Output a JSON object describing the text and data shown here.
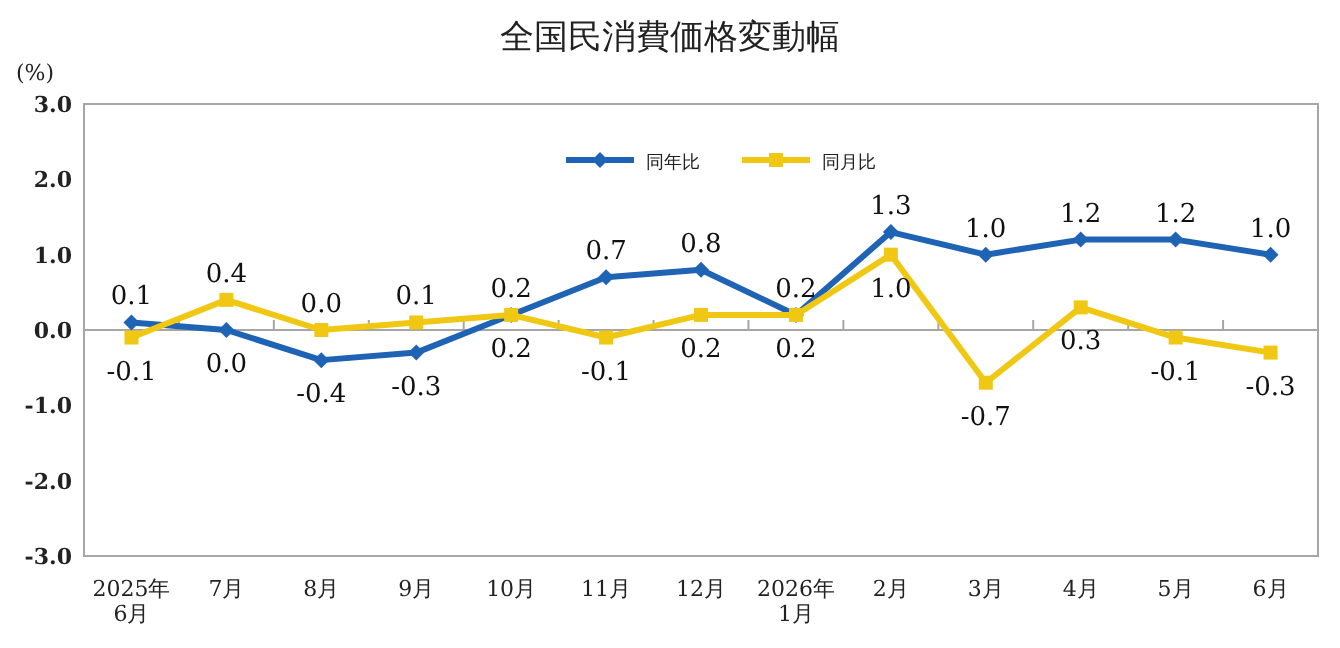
{
  "chart_data": {
    "type": "line",
    "title": "全国民消費価格変動幅",
    "ylabel": "(%)",
    "categories": [
      "2025年\n6月",
      "7月",
      "8月",
      "9月",
      "10月",
      "11月",
      "12月",
      "2026年\n1月",
      "2月",
      "3月",
      "4月",
      "5月",
      "6月"
    ],
    "series": [
      {
        "name": "同年比",
        "color": "#1f63b5",
        "marker": "diamond",
        "values": [
          0.1,
          0.0,
          -0.4,
          -0.3,
          0.2,
          0.7,
          0.8,
          0.2,
          1.3,
          1.0,
          1.2,
          1.2,
          1.0
        ],
        "value_labels": [
          "0.1",
          "0.0",
          "-0.4",
          "-0.3",
          "0.2",
          "0.7",
          "0.8",
          "0.2",
          "1.3",
          "1.0",
          "1.2",
          "1.2",
          "1.0"
        ]
      },
      {
        "name": "同月比",
        "color": "#f0c814",
        "marker": "square",
        "values": [
          -0.1,
          0.4,
          0.0,
          0.1,
          0.2,
          -0.1,
          0.2,
          0.2,
          1.0,
          -0.7,
          0.3,
          -0.1,
          -0.3
        ],
        "value_labels": [
          "-0.1",
          "0.4",
          "0.0",
          "0.1",
          "0.2",
          "-0.1",
          "0.2",
          "0.2",
          "1.0",
          "-0.7",
          "0.3",
          "-0.1",
          "-0.3"
        ]
      }
    ],
    "ylim": [
      -3.0,
      3.0
    ],
    "yticks": [
      {
        "value": -3,
        "label": "-3.0"
      },
      {
        "value": -2,
        "label": "-2.0"
      },
      {
        "value": -1,
        "label": "-1.0"
      },
      {
        "value": 0,
        "label": "0.0"
      },
      {
        "value": 1,
        "label": "1.0"
      },
      {
        "value": 2,
        "label": "2.0"
      },
      {
        "value": 3,
        "label": "3.0"
      }
    ],
    "legend": "top"
  }
}
